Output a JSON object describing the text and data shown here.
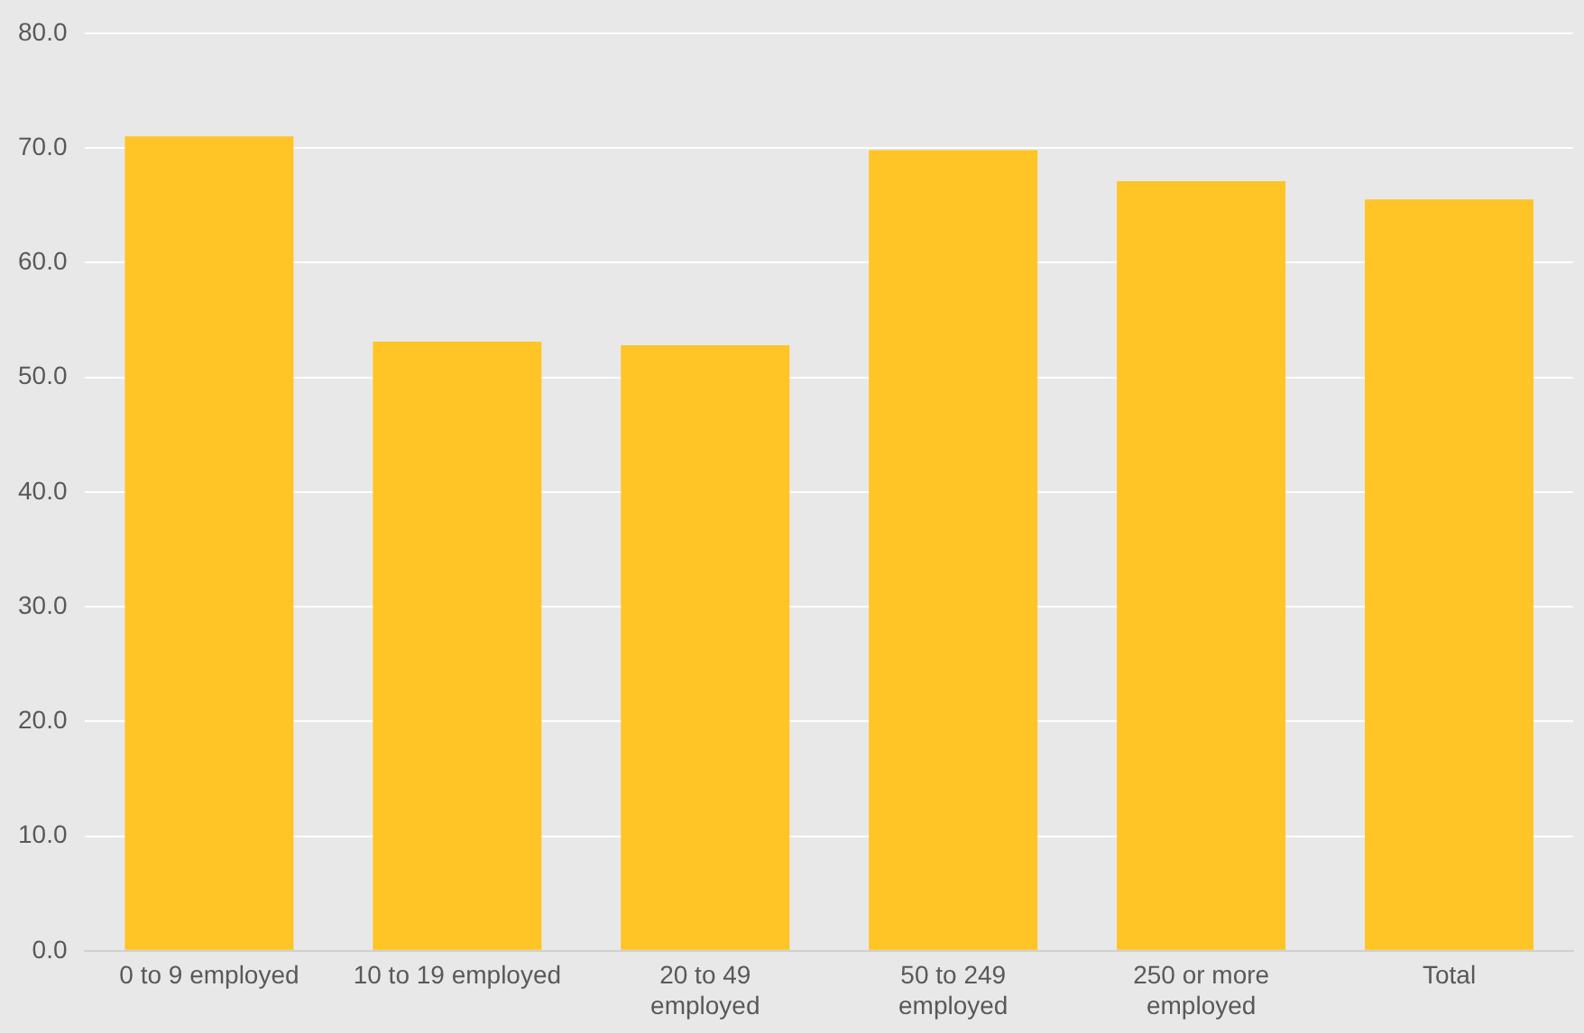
{
  "chart_data": {
    "type": "bar",
    "categories": [
      "0 to 9 employed",
      "10 to 19 employed",
      "20 to 49\nemployed",
      "50 to 249\nemployed",
      "250 or more\nemployed",
      "Total"
    ],
    "values": [
      71.0,
      53.1,
      52.8,
      69.8,
      67.1,
      65.5
    ],
    "color": "#ffc425",
    "ylim": [
      0,
      80
    ],
    "yticks": [
      {
        "value": 0,
        "label": "0.0"
      },
      {
        "value": 10,
        "label": "10.0"
      },
      {
        "value": 20,
        "label": "20.0"
      },
      {
        "value": 30,
        "label": "30.0"
      },
      {
        "value": 40,
        "label": "40.0"
      },
      {
        "value": 50,
        "label": "50.0"
      },
      {
        "value": 60,
        "label": "60.0"
      },
      {
        "value": 70,
        "label": "70.0"
      },
      {
        "value": 80,
        "label": "80.0"
      }
    ],
    "grid": "y"
  }
}
